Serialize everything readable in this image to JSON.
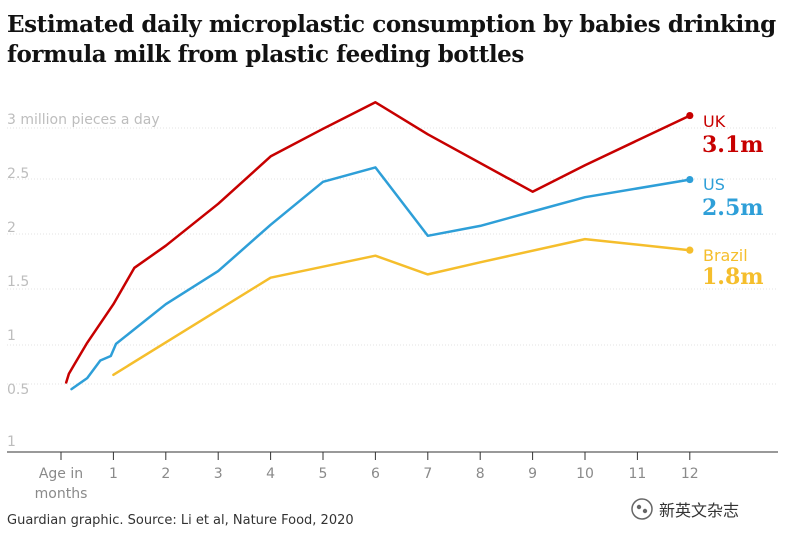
{
  "title": "Estimated daily microplastic consumption by babies drinking formula milk from plastic feeding bottles",
  "source": "Guardian graphic. Source: Li et al, Nature Food, 2020",
  "watermark": "新英文杂志",
  "chart_data": {
    "type": "line",
    "yunit_label": "3 million pieces a day",
    "y_tick_labels": [
      "1",
      "0.5",
      "1",
      "1.5",
      "2",
      "2.5",
      "3 million pieces a day"
    ],
    "x_tick_labels": [
      "Age in months",
      "1",
      "2",
      "3",
      "4",
      "5",
      "6",
      "7",
      "8",
      "9",
      "10",
      "11",
      "12"
    ],
    "xlim": [
      0,
      12
    ],
    "ylim": [
      0,
      3
    ],
    "grid": true,
    "series": [
      {
        "name": "UK",
        "end_label": "3.1m",
        "color": "#c70000",
        "points": [
          [
            0.1,
            0.63
          ],
          [
            0.15,
            0.71
          ],
          [
            0.25,
            0.79
          ],
          [
            0.5,
            0.99
          ],
          [
            1.0,
            1.34
          ],
          [
            1.4,
            1.67
          ],
          [
            2,
            1.87
          ],
          [
            3,
            2.25
          ],
          [
            4,
            2.68
          ],
          [
            5,
            2.93
          ],
          [
            6,
            3.17
          ],
          [
            7,
            2.88
          ],
          [
            9,
            2.36
          ],
          [
            10,
            2.6
          ],
          [
            12,
            3.05
          ]
        ]
      },
      {
        "name": "US",
        "end_label": "2.5m",
        "color": "#2e9fd8",
        "points": [
          [
            0.2,
            0.57
          ],
          [
            0.5,
            0.67
          ],
          [
            0.75,
            0.83
          ],
          [
            0.95,
            0.87
          ],
          [
            1.05,
            0.98
          ],
          [
            2,
            1.34
          ],
          [
            3,
            1.64
          ],
          [
            4,
            2.06
          ],
          [
            5,
            2.45
          ],
          [
            6,
            2.58
          ],
          [
            7,
            1.96
          ],
          [
            8,
            2.05
          ],
          [
            9,
            2.18
          ],
          [
            10,
            2.31
          ],
          [
            12,
            2.47
          ]
        ]
      },
      {
        "name": "Brazil",
        "end_label": "1.8m",
        "color": "#f5be2c",
        "points": [
          [
            1,
            0.7
          ],
          [
            4,
            1.58
          ],
          [
            6,
            1.78
          ],
          [
            7,
            1.61
          ],
          [
            8,
            1.72
          ],
          [
            10,
            1.93
          ],
          [
            12,
            1.83
          ]
        ]
      }
    ]
  }
}
